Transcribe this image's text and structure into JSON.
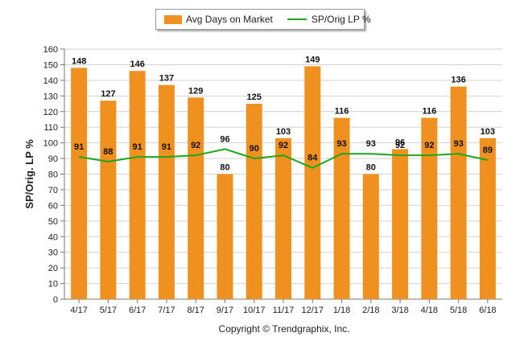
{
  "chart_data": {
    "type": "bar",
    "categories": [
      "4/17",
      "5/17",
      "6/17",
      "7/17",
      "8/17",
      "9/17",
      "10/17",
      "11/17",
      "12/17",
      "1/18",
      "2/18",
      "3/18",
      "4/18",
      "5/18",
      "6/18"
    ],
    "series": [
      {
        "name": "Avg Days on Market",
        "type": "bar",
        "color": "#f0901e",
        "values": [
          148,
          127,
          146,
          137,
          129,
          80,
          125,
          103,
          149,
          116,
          80,
          96,
          116,
          136,
          103
        ]
      },
      {
        "name": "SP/Orig LP %",
        "type": "line",
        "color": "#1aa81a",
        "values": [
          91,
          88,
          91,
          91,
          92,
          96,
          90,
          92,
          84,
          93,
          93,
          92,
          92,
          93,
          89
        ]
      }
    ],
    "ylabel": "SP/Orig. LP %",
    "ylim": [
      0,
      160
    ],
    "yticks": [
      0,
      10,
      20,
      30,
      40,
      50,
      60,
      70,
      80,
      90,
      100,
      110,
      120,
      130,
      140,
      150,
      160
    ],
    "grid": true,
    "legend_position": "top-center"
  },
  "footer": {
    "copyright": "Copyright © Trendgraphix, Inc."
  }
}
